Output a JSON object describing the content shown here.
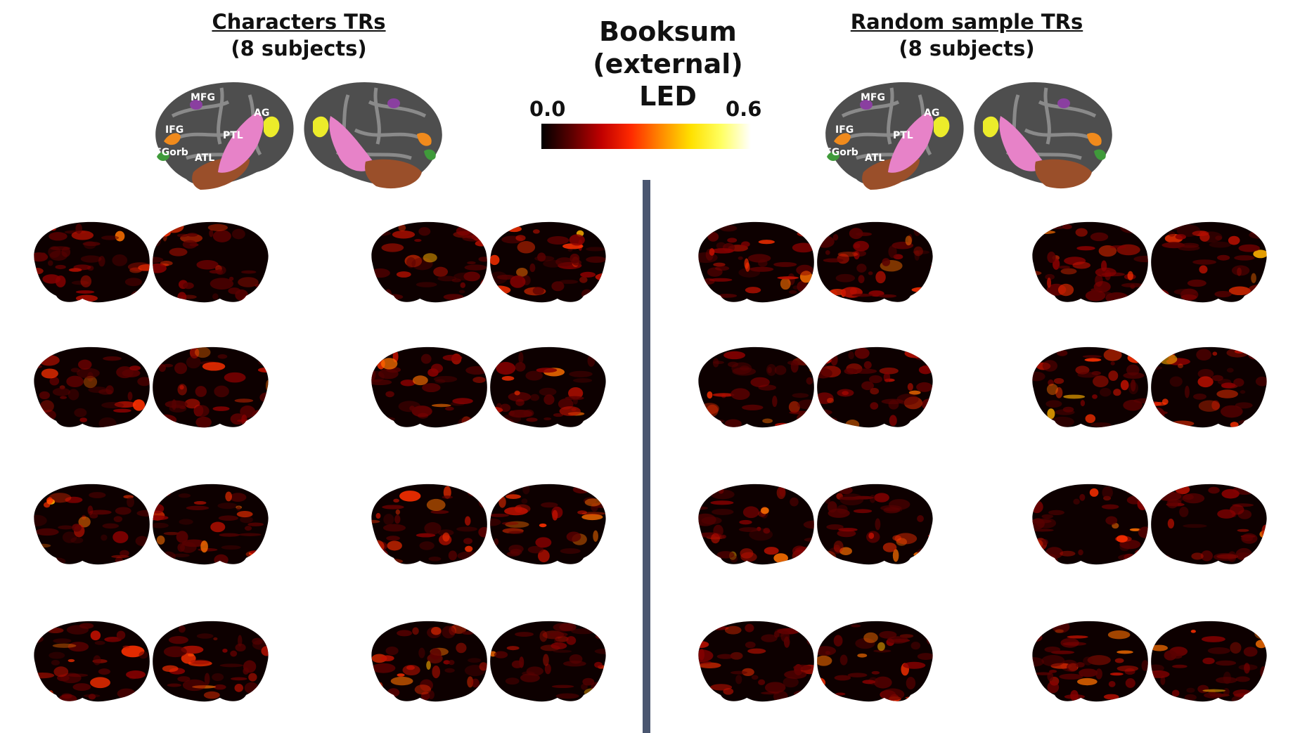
{
  "main_title": {
    "line1": "Booksum (external)",
    "line2": "LED"
  },
  "colorbar": {
    "min_label": "0.0",
    "max_label": "0.6",
    "colors": [
      "#000000",
      "#5a0000",
      "#c00000",
      "#ff2a00",
      "#ff8a00",
      "#ffe100",
      "#ffff60",
      "#ffffff"
    ]
  },
  "left_panel": {
    "title": "Characters TRs",
    "subtitle": "(8 subjects)"
  },
  "right_panel": {
    "title": "Random sample TRs",
    "subtitle": "(8 subjects)"
  },
  "roi_labels": {
    "mfg": "MFG",
    "ifg": "IFG",
    "ifgorb": "IFGorb",
    "atl": "ATL",
    "ptl": "PTL",
    "ag": "AG"
  },
  "roi_colors": {
    "mfg": "#8a3fa0",
    "ifg": "#f08a1c",
    "ifgorb": "#3f9a3a",
    "atl": "#9a4f2a",
    "ptl": "#e782c8",
    "ag": "#ecec2a"
  },
  "subject_count_per_panel": 8
}
